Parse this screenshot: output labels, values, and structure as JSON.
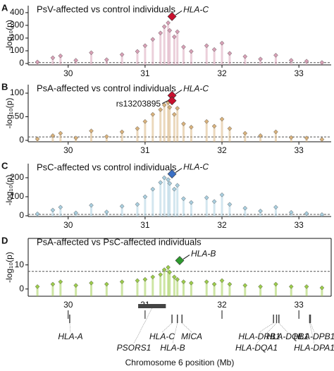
{
  "chart_data": [
    {
      "type": "scatter",
      "letter": "A",
      "title": "PsV-affected vs control individuals",
      "ylabel": "-log₁₀(p)",
      "color": "#d8a0b6",
      "x": [
        29.6,
        29.8,
        29.9,
        30.1,
        30.3,
        30.5,
        30.7,
        30.9,
        31.0,
        31.1,
        31.2,
        31.25,
        31.3,
        31.32,
        31.38,
        31.42,
        31.5,
        31.6,
        31.8,
        31.9,
        32.0,
        32.1,
        32.3,
        32.5,
        32.7,
        32.9,
        33.1,
        33.3
      ],
      "values": [
        12,
        45,
        60,
        25,
        85,
        30,
        70,
        95,
        140,
        190,
        240,
        290,
        320,
        260,
        210,
        250,
        130,
        95,
        140,
        110,
        160,
        80,
        55,
        35,
        65,
        25,
        18,
        8
      ],
      "highlights": [
        {
          "x": 31.35,
          "value": 370,
          "color": "#c8102e",
          "label": "HLA-C"
        }
      ],
      "threshold": 7.3,
      "xlim": [
        29.48,
        33.42
      ],
      "ylim": [
        -11,
        455
      ],
      "xticks": [
        30,
        31,
        32,
        33
      ],
      "yticks": [
        0,
        100,
        200,
        300,
        400
      ]
    },
    {
      "type": "scatter",
      "letter": "B",
      "title": "PsA-affected vs control individuals",
      "ylabel": "-log₁₀(p)",
      "color": "#d9b27c",
      "x": [
        29.6,
        29.8,
        29.9,
        30.1,
        30.3,
        30.5,
        30.7,
        30.9,
        31.0,
        31.1,
        31.2,
        31.25,
        31.3,
        31.32,
        31.38,
        31.42,
        31.5,
        31.6,
        31.8,
        31.9,
        32.0,
        32.1,
        32.3,
        32.5,
        32.7,
        32.9,
        33.1,
        33.3
      ],
      "values": [
        3,
        10,
        15,
        5,
        20,
        8,
        18,
        25,
        40,
        55,
        65,
        75,
        80,
        70,
        55,
        68,
        35,
        28,
        40,
        30,
        45,
        25,
        15,
        10,
        18,
        6,
        5,
        2
      ],
      "highlights": [
        {
          "x": 31.35,
          "value": 95,
          "color": "#c8102e",
          "label": "HLA-C"
        },
        {
          "x": 31.35,
          "value": 84,
          "color": "#c8102e",
          "label": "rs13203895"
        }
      ],
      "threshold": 7.3,
      "xlim": [
        29.48,
        33.42
      ],
      "ylim": [
        -3,
        118
      ],
      "xticks": [
        30,
        31,
        32,
        33
      ],
      "yticks": [
        0,
        50,
        100
      ]
    },
    {
      "type": "scatter",
      "letter": "C",
      "title": "PsC-affected vs control individuals",
      "ylabel": "-log₁₀(p)",
      "color": "#a9cfe0",
      "x": [
        29.6,
        29.8,
        29.9,
        30.1,
        30.3,
        30.5,
        30.7,
        30.9,
        31.0,
        31.1,
        31.2,
        31.25,
        31.3,
        31.32,
        31.38,
        31.42,
        31.5,
        31.6,
        31.8,
        31.9,
        32.0,
        32.1,
        32.3,
        32.5,
        32.7,
        32.9,
        33.1,
        33.3
      ],
      "values": [
        10,
        30,
        45,
        15,
        55,
        20,
        50,
        60,
        100,
        140,
        175,
        200,
        190,
        170,
        140,
        160,
        90,
        70,
        95,
        75,
        110,
        60,
        40,
        25,
        45,
        18,
        12,
        6
      ],
      "highlights": [
        {
          "x": 31.35,
          "value": 220,
          "color": "#3a6fc4",
          "label": "HLA-C"
        }
      ],
      "threshold": 7.3,
      "xlim": [
        29.48,
        33.42
      ],
      "ylim": [
        -4,
        274
      ],
      "xticks": [
        30,
        31,
        32,
        33
      ],
      "yticks": [
        0,
        100,
        200
      ]
    },
    {
      "type": "scatter",
      "letter": "D",
      "title": "PsA-affected vs PsC-affected individuals",
      "ylabel": "-log₁₀(p)",
      "color": "#9ccc4a",
      "x": [
        29.6,
        29.8,
        29.9,
        30.1,
        30.3,
        30.5,
        30.7,
        30.9,
        31.0,
        31.1,
        31.2,
        31.25,
        31.3,
        31.32,
        31.38,
        31.42,
        31.5,
        31.6,
        31.8,
        31.9,
        32.0,
        32.1,
        32.3,
        32.5,
        32.7,
        32.9,
        33.1,
        33.3
      ],
      "values": [
        1,
        2,
        3,
        1.5,
        2.5,
        2,
        3,
        3.5,
        4,
        5,
        6,
        8,
        9,
        7,
        5,
        4,
        3,
        2.5,
        3,
        2,
        3.5,
        2,
        1.5,
        1,
        2,
        1,
        1,
        0.5
      ],
      "highlights": [
        {
          "x": 31.45,
          "value": 11.8,
          "color": "#2e9a2e",
          "label": "HLA-B"
        }
      ],
      "threshold": 7.3,
      "xlim": [
        29.48,
        33.42
      ],
      "ylim": [
        -3,
        21
      ],
      "yticks": [
        0,
        10
      ]
    },
    {
      "type": "genes",
      "xlabel": "Chromosome 6 position (Mb)",
      "xlim": [
        29.48,
        33.42
      ],
      "xticks": [
        30,
        31,
        32,
        33
      ],
      "genes": [
        {
          "name": "HLA-A",
          "start": 30.02,
          "end": 30.02
        },
        {
          "name": "PSORS1",
          "start": 30.91,
          "end": 31.27
        },
        {
          "name": "HLA-C",
          "start": 31.35,
          "end": 31.35
        },
        {
          "name": "HLA-B",
          "start": 31.42,
          "end": 31.42
        },
        {
          "name": "MICA",
          "start": 31.48,
          "end": 31.48
        },
        {
          "name": "HLA-DRB1",
          "start": 32.67,
          "end": 32.67
        },
        {
          "name": "HLA-DQB1",
          "start": 32.74,
          "end": 32.74
        },
        {
          "name": "HLA-DQA1",
          "start": 32.71,
          "end": 32.71
        },
        {
          "name": "HLA-DPB1",
          "start": 33.15,
          "end": 33.15
        },
        {
          "name": "HLA-DPA1",
          "start": 33.14,
          "end": 33.14
        }
      ]
    }
  ]
}
